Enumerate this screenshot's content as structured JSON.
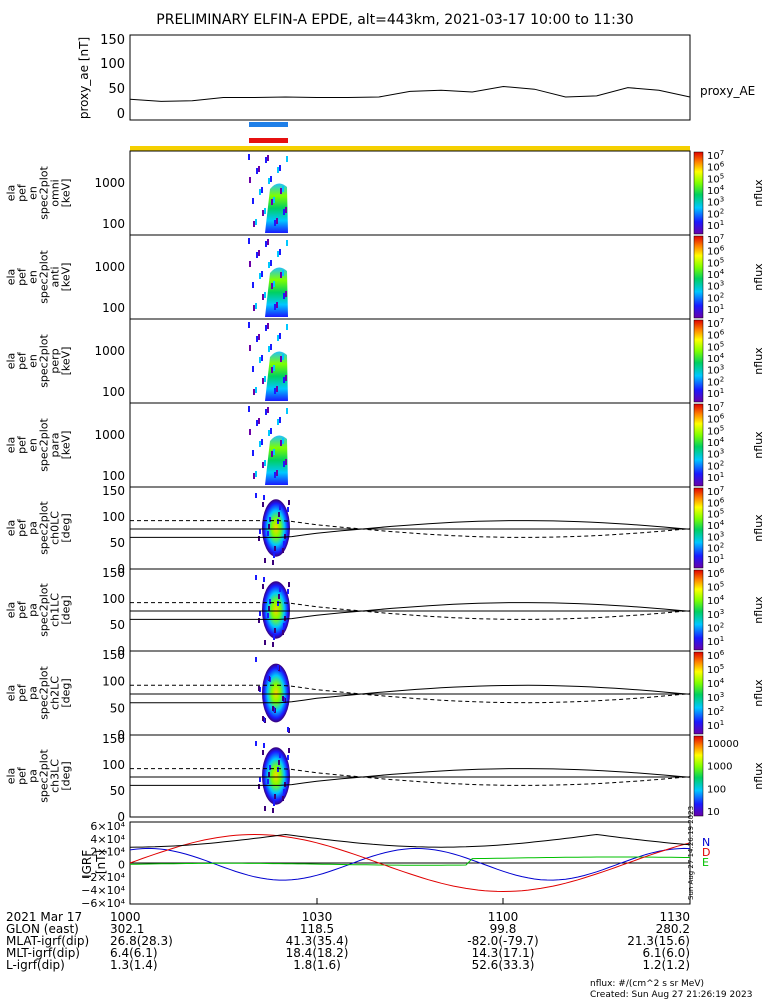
{
  "title": "PRELIMINARY ELFIN-A EPDE, alt=443km, 2021-03-17 10:00 to 11:30",
  "colors": {
    "blue_bar": "#1f7fe8",
    "red_bar": "#e61010",
    "yellow_bar": "#f5d000",
    "bx": "#0000d0",
    "by": "#00c000",
    "bz": "#e00000"
  },
  "x_ticks": [
    "1000",
    "1030",
    "1100",
    "1130"
  ],
  "bottom_rows": [
    {
      "label": "2021 Mar 17",
      "values": [
        "1000",
        "1030",
        "1100",
        "1130"
      ]
    },
    {
      "label": "GLON (east)",
      "values": [
        "302.1",
        "118.5",
        "99.8",
        "280.2"
      ]
    },
    {
      "label": "MLAT-igrf(dip)",
      "values": [
        "26.8(28.3)",
        "41.3(35.4)",
        "-82.0(-79.7)",
        "21.3(15.6)"
      ]
    },
    {
      "label": "MLT-igrf(dip)",
      "values": [
        "6.4(6.1)",
        "18.4(18.2)",
        "14.3(17.1)",
        "6.1(6.0)"
      ]
    },
    {
      "label": "L-igrf(dip)",
      "values": [
        "1.3(1.4)",
        "1.8(1.6)",
        "52.6(33.3)",
        "1.2(1.2)"
      ]
    }
  ],
  "footer": {
    "units": "nflux: #/(cm^2 s sr MeV)",
    "created": "Created: Sun Aug 27 21:26:19 2023"
  },
  "side_stamp": "Sun Aug 27 14:26:19 2023",
  "chart_data": [
    {
      "type": "line",
      "ylabel": "proxy_ae [nT]",
      "yticks": [
        "150",
        "100",
        "50",
        "0"
      ],
      "ylim": [
        0,
        150
      ],
      "series": [
        {
          "name": "proxy_AE",
          "x": [
            0,
            5,
            10,
            15,
            20,
            25,
            30,
            35,
            40,
            45,
            50,
            55,
            60,
            65,
            70,
            75,
            80,
            85,
            90
          ],
          "values": [
            34,
            30,
            31,
            37,
            37,
            38,
            37,
            37,
            38,
            48,
            50,
            47,
            57,
            52,
            38,
            40,
            55,
            50,
            38
          ]
        }
      ]
    },
    {
      "type": "heatmap",
      "ylabel": [
        "ela",
        "pef",
        "en",
        "spec2plot",
        "omni",
        "[keV]"
      ],
      "yticks": [
        "1000",
        "100"
      ],
      "cbticks": [
        "10",
        "7"
      ],
      "cblabel": "nflux"
    },
    {
      "type": "heatmap",
      "ylabel": [
        "ela",
        "pef",
        "en",
        "spec2plot",
        "anti",
        "[keV]"
      ],
      "yticks": [
        "1000",
        "100"
      ],
      "cbticks": [
        "10",
        "7"
      ],
      "cblabel": "nflux"
    },
    {
      "type": "heatmap",
      "ylabel": [
        "ela",
        "pef",
        "en",
        "spec2plot",
        "perp",
        "[keV]"
      ],
      "yticks": [
        "1000",
        "100"
      ],
      "cbticks": [
        "10",
        "7"
      ],
      "cblabel": "nflux"
    },
    {
      "type": "heatmap",
      "ylabel": [
        "ela",
        "pef",
        "en",
        "spec2plot",
        "para",
        "[keV]"
      ],
      "yticks": [
        "1000",
        "100"
      ],
      "cbticks": [
        "10",
        "7"
      ],
      "cblabel": "nflux"
    },
    {
      "type": "heatmap",
      "ylabel": [
        "ela",
        "pef",
        "pa",
        "spec2plot",
        "ch0LC",
        "[deg]"
      ],
      "yticks": [
        "150",
        "100",
        "50",
        "0"
      ],
      "cbticks": [
        "10",
        "7"
      ],
      "cblabel": "nflux"
    },
    {
      "type": "heatmap",
      "ylabel": [
        "ela",
        "pef",
        "pa",
        "spec2plot",
        "ch1LC",
        "[deg]"
      ],
      "yticks": [
        "150",
        "100",
        "50",
        "0"
      ],
      "cbticks": [
        "10",
        "6"
      ],
      "cblabel": "nflux"
    },
    {
      "type": "heatmap",
      "ylabel": [
        "ela",
        "pef",
        "pa",
        "spec2plot",
        "ch2LC",
        "[deg]"
      ],
      "yticks": [
        "150",
        "100",
        "50",
        "0"
      ],
      "cbticks": [
        "10",
        "6"
      ],
      "cblabel": "nflux"
    },
    {
      "type": "heatmap",
      "ylabel": [
        "ela",
        "pef",
        "pa",
        "spec2plot",
        "ch3LC",
        "[deg]"
      ],
      "yticks": [
        "150",
        "100",
        "50",
        "0"
      ],
      "cbticks": [
        "10000",
        "1000",
        "100",
        "10"
      ],
      "cblabel": "nflux"
    },
    {
      "type": "line",
      "ylabel": [
        "IGRF",
        "[nT]"
      ],
      "yticks": [
        "6×10⁴",
        "4×10⁴",
        "2×10⁴",
        "0",
        "−2×10⁴",
        "−4×10⁴",
        "−6×10⁴"
      ],
      "ylim": [
        -60000,
        60000
      ],
      "legend": [
        "N",
        "E",
        "D"
      ]
    }
  ]
}
